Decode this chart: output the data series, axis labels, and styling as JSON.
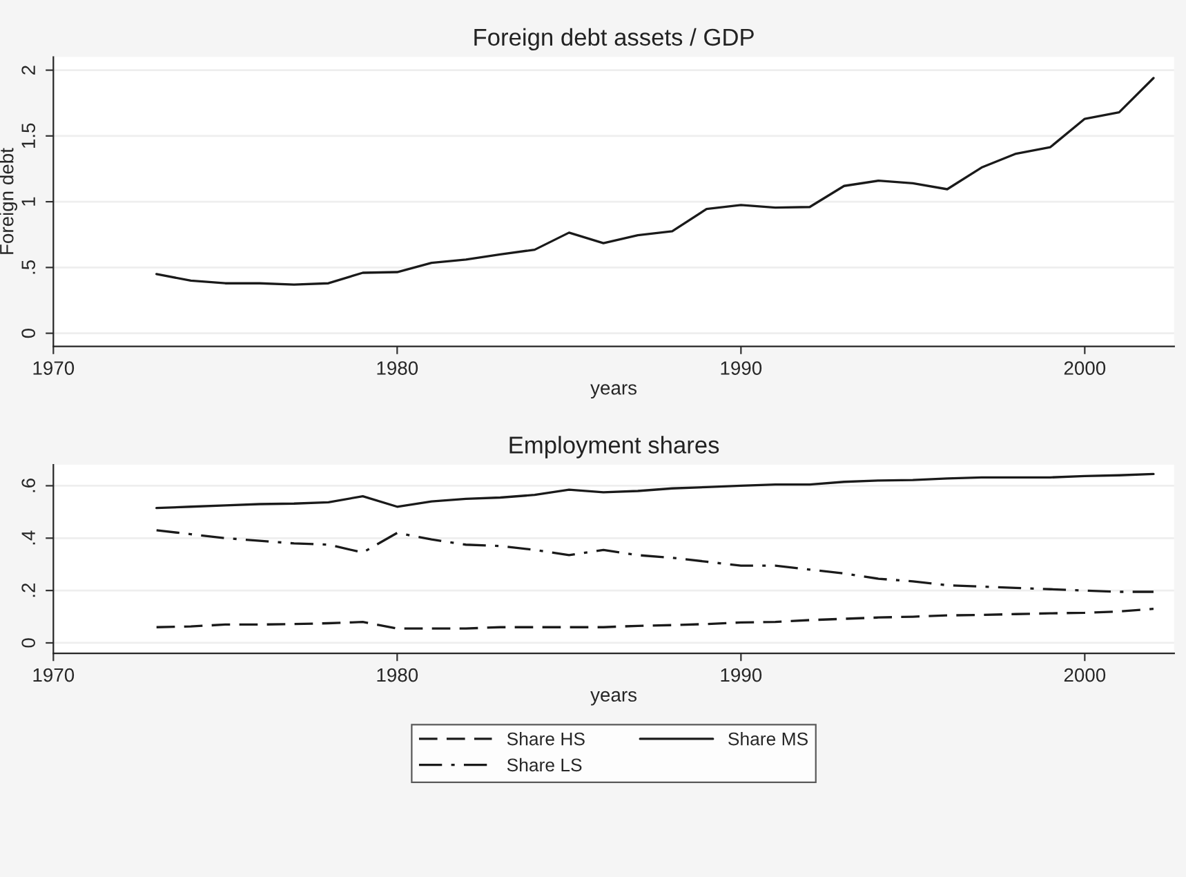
{
  "chart_data": [
    {
      "type": "line",
      "title": "Foreign debt assets / GDP",
      "xlabel": "years",
      "ylabel": "Foreign debt",
      "x": [
        1973,
        1974,
        1975,
        1976,
        1977,
        1978,
        1979,
        1980,
        1981,
        1982,
        1983,
        1984,
        1985,
        1986,
        1987,
        1988,
        1989,
        1990,
        1991,
        1992,
        1993,
        1994,
        1995,
        1996,
        1997,
        1998,
        1999,
        2000,
        2001,
        2002
      ],
      "series": [
        {
          "color": "#1a1a1a",
          "line_style": "solid",
          "values": [
            0.45,
            0.4,
            0.38,
            0.38,
            0.37,
            0.38,
            0.46,
            0.465,
            0.535,
            0.56,
            0.6,
            0.635,
            0.765,
            0.685,
            0.745,
            0.775,
            0.945,
            0.975,
            0.955,
            0.96,
            1.12,
            1.16,
            1.14,
            1.095,
            1.26,
            1.365,
            1.415,
            1.63,
            1.68,
            1.94
          ]
        }
      ],
      "xlim": [
        1970,
        2002.6
      ],
      "xticks": [
        1970,
        1980,
        1990,
        2000
      ],
      "ylim": [
        -0.1,
        2.1
      ],
      "yticks": [
        0,
        {
          "value": 0.5,
          "label": ".5"
        },
        1,
        1.5,
        2
      ],
      "grid": "y",
      "legend": false
    },
    {
      "type": "line",
      "title": "Employment shares",
      "xlabel": "years",
      "x": [
        1973,
        1974,
        1975,
        1976,
        1977,
        1978,
        1979,
        1980,
        1981,
        1982,
        1983,
        1984,
        1985,
        1986,
        1987,
        1988,
        1989,
        1990,
        1991,
        1992,
        1993,
        1994,
        1995,
        1996,
        1997,
        1998,
        1999,
        2000,
        2001,
        2002
      ],
      "series": [
        {
          "name": "Share HS",
          "color": "#1a1a1a",
          "line_style": "dashed",
          "values": [
            0.06,
            0.063,
            0.07,
            0.07,
            0.072,
            0.075,
            0.08,
            0.055,
            0.055,
            0.055,
            0.06,
            0.06,
            0.06,
            0.06,
            0.065,
            0.068,
            0.072,
            0.078,
            0.08,
            0.087,
            0.092,
            0.097,
            0.1,
            0.105,
            0.107,
            0.11,
            0.113,
            0.115,
            0.12,
            0.13
          ]
        },
        {
          "name": "Share MS",
          "color": "#1a1a1a",
          "line_style": "solid",
          "values": [
            0.515,
            0.52,
            0.525,
            0.53,
            0.532,
            0.537,
            0.56,
            0.52,
            0.54,
            0.55,
            0.555,
            0.565,
            0.585,
            0.575,
            0.58,
            0.59,
            0.595,
            0.6,
            0.605,
            0.605,
            0.615,
            0.62,
            0.622,
            0.628,
            0.632,
            0.632,
            0.632,
            0.637,
            0.64,
            0.645
          ]
        },
        {
          "name": "Share LS",
          "color": "#1a1a1a",
          "line_style": "dashdot",
          "values": [
            0.43,
            0.415,
            0.4,
            0.39,
            0.38,
            0.375,
            0.345,
            0.42,
            0.395,
            0.375,
            0.37,
            0.355,
            0.335,
            0.355,
            0.335,
            0.325,
            0.31,
            0.295,
            0.295,
            0.28,
            0.265,
            0.245,
            0.235,
            0.22,
            0.215,
            0.21,
            0.205,
            0.2,
            0.195,
            0.195
          ]
        }
      ],
      "xlim": [
        1970,
        2002.6
      ],
      "xticks": [
        1970,
        1980,
        1990,
        2000
      ],
      "ylim": [
        -0.04,
        0.68
      ],
      "yticks": [
        0,
        {
          "value": 0.2,
          "label": ".2"
        },
        {
          "value": 0.4,
          "label": ".4"
        },
        {
          "value": 0.6,
          "label": ".6"
        }
      ],
      "grid": "y",
      "legend": "bottom"
    }
  ]
}
